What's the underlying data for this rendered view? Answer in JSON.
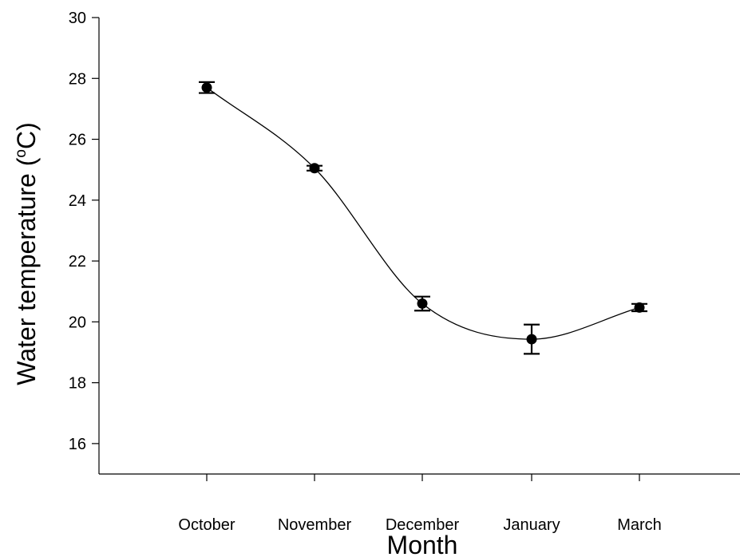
{
  "chart_data": {
    "type": "line",
    "title": "",
    "xlabel": "Month",
    "ylabel_parts": [
      "Water temperature (",
      "o",
      "C)"
    ],
    "categories": [
      "October",
      "November",
      "December",
      "January",
      "March"
    ],
    "series": [
      {
        "values": [
          27.7,
          25.05,
          20.6,
          19.43,
          20.47
        ],
        "errors": [
          0.18,
          0.08,
          0.23,
          0.48,
          0.12
        ]
      }
    ],
    "ylim": [
      15,
      30
    ],
    "yticks": [
      16,
      18,
      20,
      22,
      24,
      26,
      28,
      30
    ],
    "ytick_labels": [
      "16",
      "18",
      "20",
      "22",
      "24",
      "26",
      "28",
      "30"
    ],
    "grid": false,
    "legend": "none",
    "smooth_curve": true,
    "marker": "filled-circle",
    "colors": {
      "line": "#000000",
      "marker": "#000000",
      "axis": "#000000"
    }
  }
}
